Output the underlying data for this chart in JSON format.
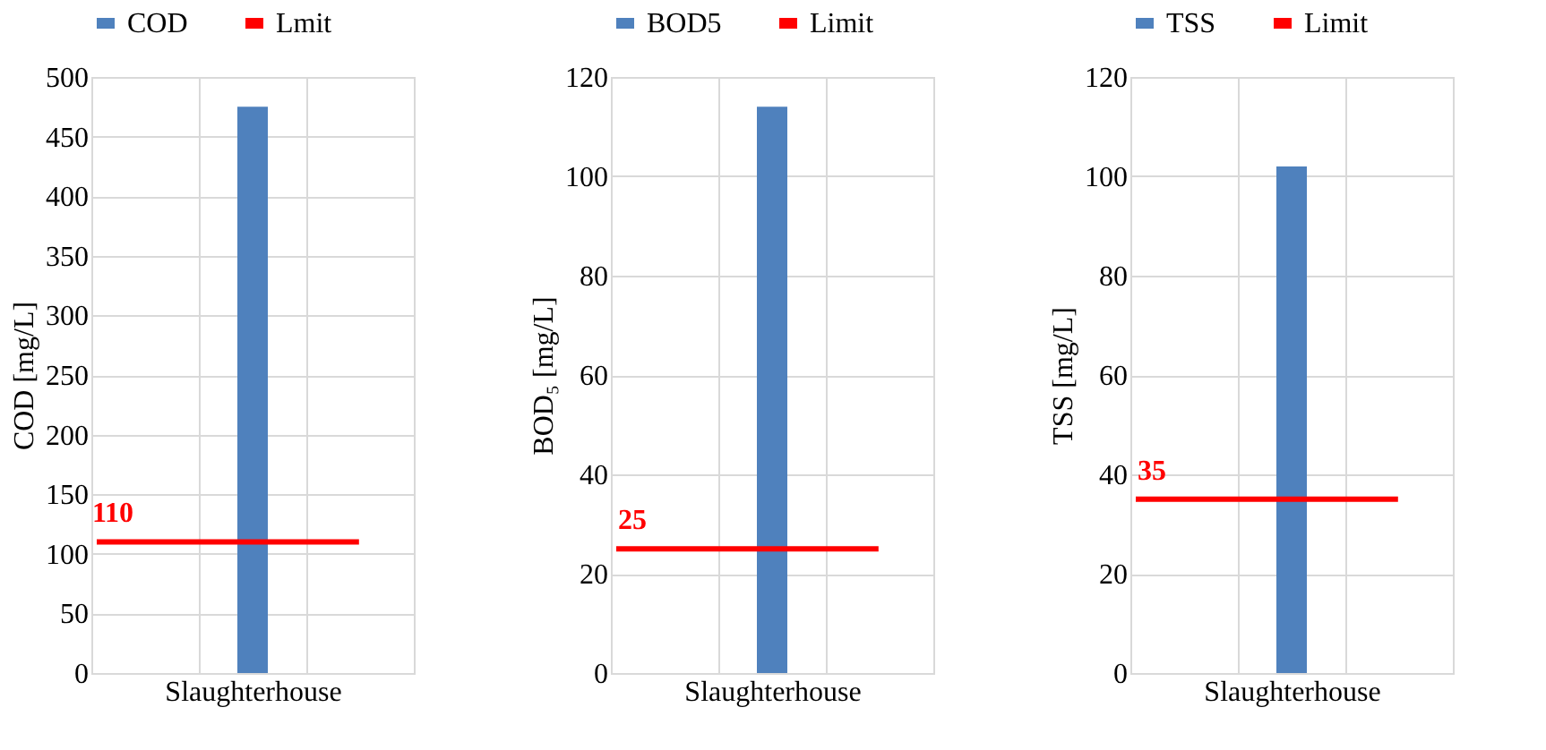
{
  "chart_data": [
    {
      "type": "bar",
      "categories": [
        "Slaughterhouse"
      ],
      "ylabel": "COD [mg/L]",
      "ylim": [
        0,
        500
      ],
      "yticks": [
        0,
        50,
        100,
        150,
        200,
        250,
        300,
        350,
        400,
        450,
        500
      ],
      "grid": true,
      "legend": "top",
      "series": [
        {
          "name": "COD",
          "color": "#4f81bd",
          "values": [
            475
          ]
        }
      ],
      "ref_lines": [
        {
          "axis": "y",
          "value": 110,
          "label": "Lmit",
          "color": "#ff0000"
        }
      ],
      "annotations": [
        {
          "text": "110",
          "y": 110
        }
      ]
    },
    {
      "type": "bar",
      "categories": [
        "Slaughterhouse"
      ],
      "ylabel": "BOD₅ [mg/L]",
      "ylim": [
        0,
        120
      ],
      "yticks": [
        0,
        20,
        40,
        60,
        80,
        100,
        120
      ],
      "grid": true,
      "legend": "top",
      "series": [
        {
          "name": "BOD5",
          "color": "#4f81bd",
          "values": [
            114
          ]
        }
      ],
      "ref_lines": [
        {
          "axis": "y",
          "value": 25,
          "label": "Limit",
          "color": "#ff0000"
        }
      ],
      "annotations": [
        {
          "text": "25",
          "y": 25
        }
      ]
    },
    {
      "type": "bar",
      "categories": [
        "Slaughterhouse"
      ],
      "ylabel": "TSS [mg/L]",
      "ylim": [
        0,
        120
      ],
      "yticks": [
        0,
        20,
        40,
        60,
        80,
        100,
        120
      ],
      "grid": true,
      "legend": "top",
      "series": [
        {
          "name": "TSS",
          "color": "#4f81bd",
          "values": [
            102
          ]
        }
      ],
      "ref_lines": [
        {
          "axis": "y",
          "value": 35,
          "label": "Limit",
          "color": "#ff0000"
        }
      ],
      "annotations": [
        {
          "text": "35",
          "y": 35
        }
      ]
    }
  ]
}
